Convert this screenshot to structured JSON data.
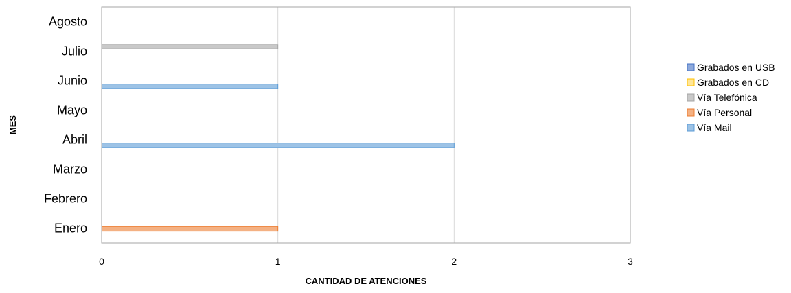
{
  "chart_data": {
    "type": "bar",
    "orientation": "horizontal",
    "categories": [
      "Enero",
      "Febrero",
      "Marzo",
      "Abril",
      "Mayo",
      "Junio",
      "Julio",
      "Agosto"
    ],
    "series": [
      {
        "name": "Vía Mail",
        "values": [
          0,
          0,
          0,
          2,
          0,
          1,
          0,
          0
        ],
        "color": "#9DC3E6",
        "stroke": "#5B9BD5"
      },
      {
        "name": "Vía Personal",
        "values": [
          1,
          0,
          0,
          0,
          0,
          0,
          0,
          0
        ],
        "color": "#F4B183",
        "stroke": "#ED7D31"
      },
      {
        "name": "Vía Telefónica",
        "values": [
          0,
          0,
          0,
          0,
          0,
          0,
          1,
          0
        ],
        "color": "#C9C9C9",
        "stroke": "#A5A5A5"
      },
      {
        "name": "Grabados en CD",
        "values": [
          0,
          0,
          0,
          0,
          0,
          0,
          0,
          0
        ],
        "color": "#FFE699",
        "stroke": "#FFC000"
      },
      {
        "name": "Grabados en USB",
        "values": [
          0,
          0,
          0,
          0,
          0,
          0,
          0,
          0
        ],
        "color": "#8EA9DB",
        "stroke": "#4472C4"
      }
    ],
    "legend_order": [
      "Grabados en USB",
      "Grabados en CD",
      "Vía Telefónica",
      "Vía Personal",
      "Vía Mail"
    ],
    "xlabel": "CANTIDAD  DE ATENCIONES",
    "ylabel": "MES",
    "xlim": [
      0,
      3
    ],
    "xticks": [
      0,
      1,
      2,
      3
    ],
    "grid": true,
    "legend_position": "right"
  }
}
